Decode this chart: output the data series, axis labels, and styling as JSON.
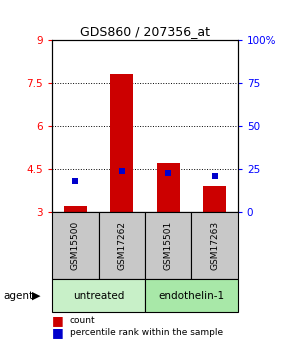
{
  "title": "GDS860 / 207356_at",
  "samples": [
    "GSM15500",
    "GSM17262",
    "GSM15501",
    "GSM17263"
  ],
  "group_labels": [
    "untreated",
    "endothelin-1"
  ],
  "group_colors": [
    "#c8f0c8",
    "#a8e8a8"
  ],
  "red_values": [
    3.2,
    7.8,
    4.7,
    3.9
  ],
  "blue_values": [
    4.1,
    4.42,
    4.35,
    4.25
  ],
  "ymin": 3.0,
  "ymax": 9.0,
  "yticks_left": [
    3,
    4.5,
    6,
    7.5,
    9
  ],
  "yticks_right": [
    0,
    25,
    50,
    75,
    100
  ],
  "ytick_right_labels": [
    "0",
    "25",
    "50",
    "75",
    "100%"
  ],
  "bar_color": "#cc0000",
  "point_color": "#0000cc",
  "sample_box_color": "#c8c8c8",
  "bar_width": 0.5,
  "legend_items": [
    "count",
    "percentile rank within the sample"
  ],
  "legend_colors": [
    "#cc0000",
    "#0000cc"
  ],
  "grid_lines": [
    4.5,
    6.0,
    7.5
  ]
}
